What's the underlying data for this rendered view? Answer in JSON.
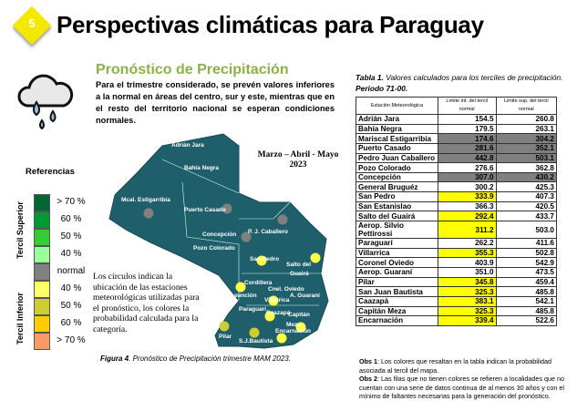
{
  "header": {
    "badge": "5",
    "title": "Perspectivas climáticas para Paraguay"
  },
  "section": {
    "icon": "rain-cloud-icon",
    "title": "Pronóstico de Precipitación",
    "paragraph": "Para el trimestre considerado, se prevén valores inferiores a la normal en áreas del centro, sur y este, mientras que en el resto del territorio nacional se esperan condiciones normales."
  },
  "legend": {
    "title": "Referencias",
    "upper_label": "Tercil Superior",
    "lower_label": "Tercil Inferior",
    "items": [
      {
        "label": "> 70 %",
        "color": "#006633"
      },
      {
        "label": "60 %",
        "color": "#009933"
      },
      {
        "label": "50 %",
        "color": "#33cc33"
      },
      {
        "label": "40 %",
        "color": "#99ff99"
      },
      {
        "label": "normal",
        "color": "#808080"
      },
      {
        "label": "40  %",
        "color": "#ffff66"
      },
      {
        "label": "50  %",
        "color": "#cccc33"
      },
      {
        "label": "60 %",
        "color": "#ffcc00"
      },
      {
        "label": "> 70 %",
        "color": "#ff9966"
      }
    ]
  },
  "map": {
    "period": "Marzo – Abril - Mayo",
    "year": "2023",
    "fill": "#1f5f6b",
    "labels": [
      "Adrián Jara",
      "Bahía Negra",
      "Mcal. Estigarribia",
      "Puerto Casado",
      "Concepción",
      "P. J. Caballero",
      "Pozo Colorado",
      "San Pedro",
      "Salto del",
      "Guairá",
      "Cordillera",
      "Cnel. Oviedo",
      "A. Guaraní",
      "Asunción",
      "Villarrica",
      "Paraguarí",
      "Caazapá",
      "Capitán",
      "Meza",
      "Encarnación",
      "Pilar",
      "S.J.Bautista"
    ],
    "note": "Los círculos indican la ubicación de las estaciones meteorológicas utilizadas para el pronóstico, los colores la probabilidad calculada para la categoría.",
    "caption_bold": "Figura 4",
    "caption": ". Pronóstico de Precipitación trimestre MAM 2023."
  },
  "table": {
    "caption_bold": "Tabla 1.",
    "caption": " Valores calculados para los terciles de precipitación.",
    "period": "Periodo 71-00.",
    "headers": [
      "Estación Meteorológica",
      "Limite inf. del tercil normal",
      "Limite sup. del tercil normal"
    ],
    "rows": [
      [
        "Adrián Jara",
        "154.5",
        "260.8",
        ""
      ],
      [
        "Bahía Negra",
        "179.5",
        "263.1",
        ""
      ],
      [
        "Mariscal Estigarribia",
        "174.6",
        "304.2",
        "gray"
      ],
      [
        "Puerto Casado",
        "281.6",
        "352.1",
        "gray"
      ],
      [
        "Pedro Juan Caballero",
        "442.8",
        "503.1",
        "gray"
      ],
      [
        "Pozo Colorado",
        "276.6",
        "362.8",
        ""
      ],
      [
        "Concepción",
        "307.0",
        "430.2",
        "gray"
      ],
      [
        "General Bruguéz",
        "300.2",
        "425.3",
        ""
      ],
      [
        "San Pedro",
        "333.9",
        "407.3",
        "yellow"
      ],
      [
        "San Estanislao",
        "366.3",
        "420.5",
        ""
      ],
      [
        "Salto del Guairá",
        "292.4",
        "433.7",
        "yellow"
      ],
      [
        "Aerop. Silvio Pettirossi",
        "311.2",
        "503.0",
        "yellow"
      ],
      [
        "Paraguarí",
        "262.2",
        "411.6",
        ""
      ],
      [
        "Villarrica",
        "355.3",
        "502.8",
        "yellow"
      ],
      [
        "Coronel Oviedo",
        "403.9",
        "542.9",
        ""
      ],
      [
        "Aerop. Guaraní",
        "351.0",
        "473.5",
        ""
      ],
      [
        "Pilar",
        "345.8",
        "459.4",
        "yellow"
      ],
      [
        "San Juan Bautista",
        "325.3",
        "485.8",
        "yellow"
      ],
      [
        "Caazapá",
        "383.1",
        "542.1",
        "yellow"
      ],
      [
        "Capitán Meza",
        "325.3",
        "485.8",
        "yellow"
      ],
      [
        "Encarnación",
        "339.4",
        "522.6",
        "yellow"
      ]
    ]
  },
  "obs": [
    {
      "label": "Obs 1",
      "text": ": Los colores que resaltan en la tabla indican la probabilidad asociada al tercil del mapa."
    },
    {
      "label": "Obs 2",
      "text": ": Las filas que no tienen colores se refieren a localidades que no cuentan con una serie de datos continua de al menos 30 años y con el mínimo de faltantes necesarias para la generación del pronóstico."
    }
  ]
}
